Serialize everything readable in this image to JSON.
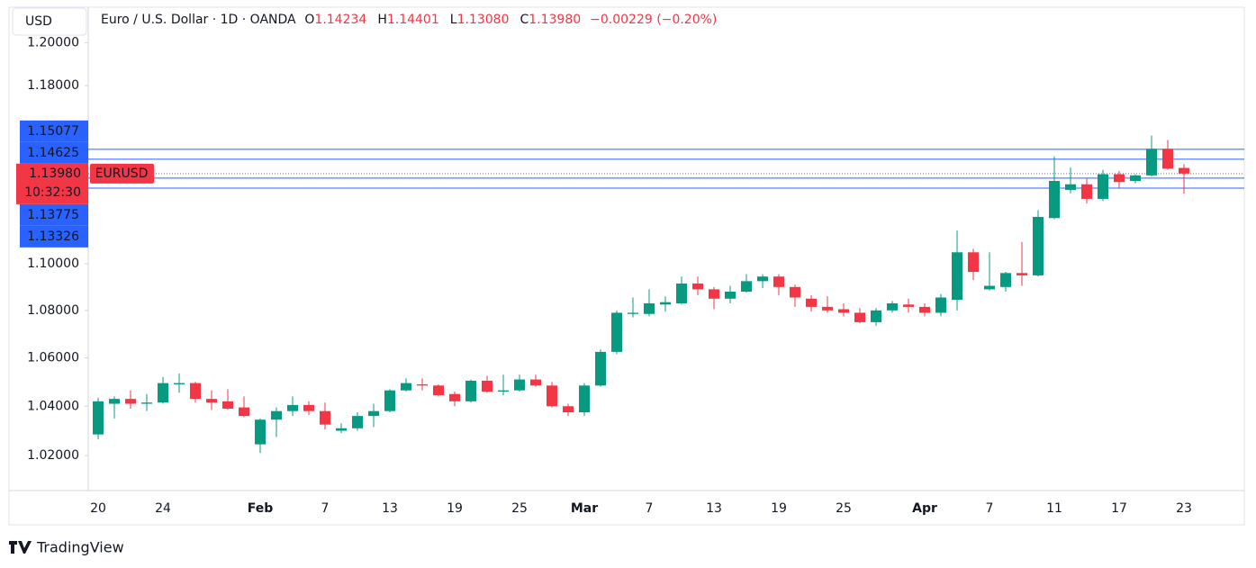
{
  "chart_data": {
    "type": "candlestick",
    "title": "Euro / U.S. Dollar · 1D · OANDA",
    "currency": "USD",
    "readout": [
      {
        "key": "O",
        "value": "1.14234"
      },
      {
        "key": "H",
        "value": "1.14401"
      },
      {
        "key": "L",
        "value": "1.13080"
      },
      {
        "key": "C",
        "value": "1.13980"
      }
    ],
    "change": "−0.00229 (−0.20%)",
    "categories": [
      "20",
      null,
      null,
      null,
      "24",
      null,
      null,
      null,
      null,
      null,
      "Feb",
      null,
      null,
      null,
      "7",
      null,
      null,
      null,
      "13",
      null,
      null,
      null,
      "19",
      null,
      null,
      null,
      "25",
      null,
      null,
      null,
      "Mar",
      null,
      null,
      null,
      "7",
      null,
      null,
      null,
      "13",
      null,
      null,
      null,
      "19",
      null,
      null,
      null,
      "25",
      null,
      null,
      null,
      null,
      "Apr",
      null,
      null,
      null,
      "7",
      null,
      null,
      null,
      "11",
      null,
      null,
      null,
      "17",
      null,
      null,
      null,
      "23"
    ],
    "open": [
      1.0285,
      1.041,
      1.043,
      1.041,
      1.0415,
      1.049,
      1.0495,
      1.043,
      1.042,
      1.0395,
      1.0245,
      1.0345,
      1.038,
      1.0405,
      1.038,
      1.03,
      1.031,
      1.036,
      1.038,
      1.0465,
      1.049,
      1.0485,
      1.045,
      1.042,
      1.0505,
      1.046,
      1.0465,
      1.051,
      1.0485,
      1.04,
      1.0375,
      1.0485,
      1.0625,
      1.0785,
      1.0785,
      1.0825,
      1.083,
      1.0915,
      1.089,
      1.085,
      1.088,
      1.0925,
      1.0945,
      1.09,
      1.085,
      1.0815,
      1.0805,
      1.079,
      1.075,
      1.08,
      1.0825,
      1.0815,
      1.079,
      1.0845,
      1.105,
      1.089,
      1.09,
      1.096,
      1.095,
      1.12,
      1.1325,
      1.135,
      1.1285,
      1.1395,
      1.1365,
      1.139,
      1.151,
      1.14234
    ],
    "high": [
      1.0435,
      1.044,
      1.0465,
      1.045,
      1.052,
      1.0535,
      1.05,
      1.0465,
      1.047,
      1.044,
      1.035,
      1.0395,
      1.044,
      1.042,
      1.0415,
      1.033,
      1.0375,
      1.041,
      1.047,
      1.0515,
      1.0515,
      1.049,
      1.046,
      1.051,
      1.0525,
      1.053,
      1.053,
      1.053,
      1.05,
      1.041,
      1.0495,
      1.0635,
      1.08,
      1.0855,
      1.089,
      1.086,
      1.0945,
      1.0945,
      1.09,
      1.0905,
      1.0955,
      1.0955,
      1.0955,
      1.091,
      1.0865,
      1.086,
      1.083,
      1.081,
      1.081,
      1.084,
      1.085,
      1.083,
      1.087,
      1.1145,
      1.1065,
      1.105,
      1.0965,
      1.1095,
      1.1235,
      1.1475,
      1.1425,
      1.1375,
      1.1415,
      1.141,
      1.1395,
      1.157,
      1.155,
      1.14401
    ],
    "low": [
      1.0265,
      1.035,
      1.039,
      1.038,
      1.041,
      1.0455,
      1.0415,
      1.0385,
      1.0385,
      1.0355,
      1.021,
      1.0275,
      1.036,
      1.0365,
      1.0305,
      1.029,
      1.03,
      1.0315,
      1.0375,
      1.046,
      1.0465,
      1.044,
      1.04,
      1.0415,
      1.0455,
      1.0445,
      1.046,
      1.048,
      1.0395,
      1.036,
      1.036,
      1.048,
      1.0615,
      1.077,
      1.0775,
      1.0795,
      1.0825,
      1.0865,
      1.0805,
      1.083,
      1.0875,
      1.0895,
      1.0865,
      1.0815,
      1.0795,
      1.079,
      1.0775,
      1.0745,
      1.0735,
      1.079,
      1.079,
      1.0775,
      1.0775,
      1.08,
      1.093,
      1.0885,
      1.088,
      1.0905,
      1.0945,
      1.1195,
      1.131,
      1.1265,
      1.1275,
      1.1335,
      1.1355,
      1.1385,
      1.1415,
      1.1308
    ],
    "close": [
      1.042,
      1.043,
      1.041,
      1.0415,
      1.0495,
      1.0495,
      1.043,
      1.0415,
      1.039,
      1.036,
      1.0345,
      1.038,
      1.0405,
      1.038,
      1.0325,
      1.031,
      1.036,
      1.038,
      1.0465,
      1.0495,
      1.0485,
      1.0445,
      1.042,
      1.0505,
      1.046,
      1.0465,
      1.051,
      1.0485,
      1.04,
      1.0375,
      1.0485,
      1.0625,
      1.079,
      1.079,
      1.083,
      1.0835,
      1.0915,
      1.089,
      1.085,
      1.088,
      1.0925,
      1.0945,
      1.09,
      1.0855,
      1.0815,
      1.08,
      1.079,
      1.075,
      1.08,
      1.083,
      1.0815,
      1.079,
      1.0855,
      1.105,
      1.0965,
      1.0905,
      1.096,
      1.095,
      1.1205,
      1.1365,
      1.135,
      1.1285,
      1.1395,
      1.136,
      1.139,
      1.151,
      1.142,
      1.1398
    ],
    "up_color": "#089981",
    "down_color": "#f23645",
    "log_scale": true,
    "ylim": [
      1.006,
      1.217
    ],
    "yticks": [
      {
        "value": 1.2,
        "label": "1.20000"
      },
      {
        "value": 1.18,
        "label": "1.18000"
      },
      {
        "value": 1.1,
        "label": "1.10000"
      },
      {
        "value": 1.08,
        "label": "1.08000"
      },
      {
        "value": 1.06,
        "label": "1.06000"
      },
      {
        "value": 1.04,
        "label": "1.04000"
      },
      {
        "value": 1.02,
        "label": "1.02000"
      }
    ],
    "price_lines": [
      {
        "value": 1.15077,
        "label": "1.15077"
      },
      {
        "value": 1.14625,
        "label": "1.14625"
      },
      {
        "value": 1.13775,
        "label": "1.13775"
      },
      {
        "value": 1.13326,
        "label": "1.13326"
      }
    ],
    "price_line_color": "#2962ff",
    "last_price": {
      "value": 1.1398,
      "label": "1.13980",
      "symbol": "EURUSD",
      "countdown": "10:32:30"
    },
    "brand": "TradingView"
  }
}
